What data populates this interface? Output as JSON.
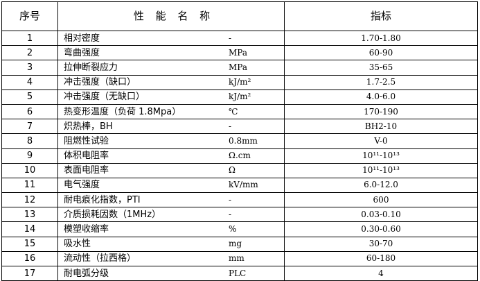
{
  "header": {
    "num": "序号",
    "name": "性 能 名 称",
    "value": "指标"
  },
  "rows": [
    {
      "num": "1",
      "name": "相对密度",
      "unit": "-",
      "value": "1.70-1.80"
    },
    {
      "num": "2",
      "name": "弯曲强度",
      "unit": "MPa",
      "value": "60-90"
    },
    {
      "num": "3",
      "name": "拉伸断裂应力",
      "unit": "MPa",
      "value": "35-65"
    },
    {
      "num": "4",
      "name": "冲击强度（缺口）",
      "unit": "kJ/m²",
      "value": "1.7-2.5"
    },
    {
      "num": "5",
      "name": "冲击强度（无缺口）",
      "unit": "kJ/m²",
      "value": "4.0-6.0"
    },
    {
      "num": "6",
      "name": "热变形温度（负荷 1.8Mpa）",
      "unit": "℃",
      "value": "170-190"
    },
    {
      "num": "7",
      "name": "炽热棒，BH",
      "unit": "-",
      "value": "BH2-10"
    },
    {
      "num": "8",
      "name": "阻燃性试验",
      "unit": "0.8mm",
      "value": "V-0"
    },
    {
      "num": "9",
      "name": "体积电阻率",
      "unit": "Ω.cm",
      "value": "10¹¹-10¹³"
    },
    {
      "num": "10",
      "name": "表面电阻率",
      "unit": "Ω",
      "value": "10¹¹-10¹³"
    },
    {
      "num": "11",
      "name": "电气强度",
      "unit": "kV/mm",
      "value": "6.0-12.0"
    },
    {
      "num": "12",
      "name": "耐电痕化指数，PTI",
      "unit": "-",
      "value": "600"
    },
    {
      "num": "13",
      "name": "介质损耗因数（1MHz）",
      "unit": "-",
      "value": "0.03-0.10"
    },
    {
      "num": "14",
      "name": "模塑收缩率",
      "unit": "%",
      "value": "0.30-0.60"
    },
    {
      "num": "15",
      "name": "吸水性",
      "unit": "mg",
      "value": "30-70"
    },
    {
      "num": "16",
      "name": "流动性（拉西格）",
      "unit": "mm",
      "value": "60-180"
    },
    {
      "num": "17",
      "name": "耐电弧分级",
      "unit": "PLC",
      "value": "4"
    }
  ]
}
